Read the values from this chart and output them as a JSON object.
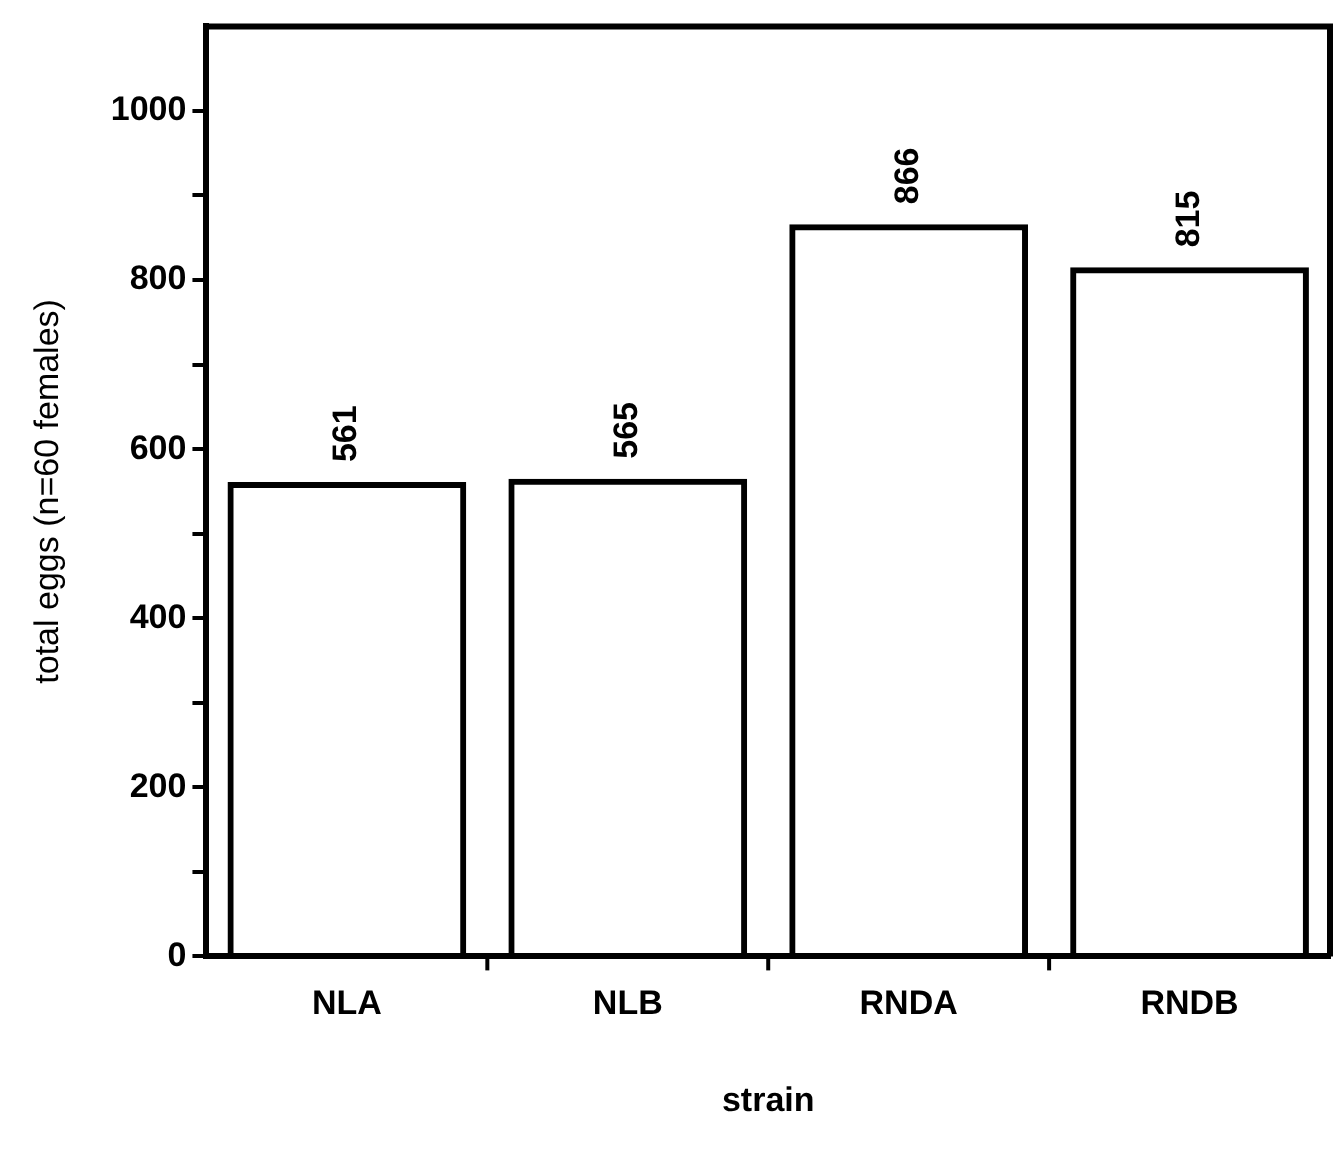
{
  "chart_data": {
    "type": "bar",
    "xlabel": "strain",
    "ylabel": "total eggs (n=60 females)",
    "categories": [
      "NLA",
      "NLB",
      "RNDA",
      "RNDB"
    ],
    "values": [
      561,
      565,
      866,
      815
    ],
    "color": "#000000",
    "ylim": [
      0,
      1100
    ],
    "yticks": [
      0,
      {
        "value": 100,
        "label": null
      },
      200,
      {
        "value": 300,
        "label": null
      },
      400,
      {
        "value": 500,
        "label": null
      },
      600,
      {
        "value": 700,
        "label": null
      },
      800,
      {
        "value": 900,
        "label": null
      },
      1000
    ],
    "grid": false,
    "legend": false,
    "data_labels": true
  }
}
